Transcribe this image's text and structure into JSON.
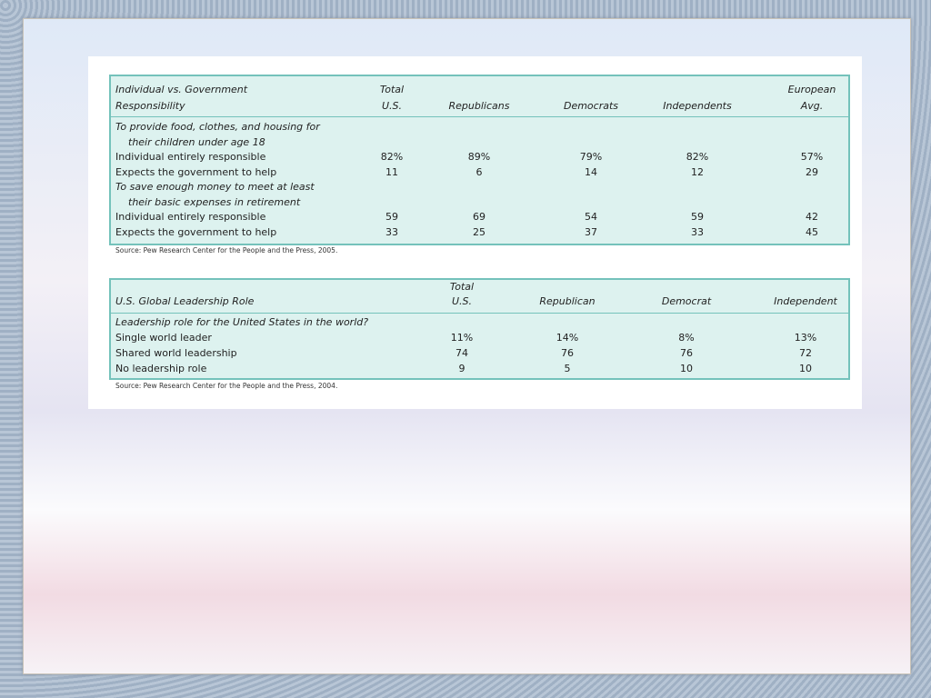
{
  "table1": {
    "header": [
      [
        "Individual vs. Government",
        "Responsibility"
      ],
      [
        "Total",
        "U.S."
      ],
      [
        "Republicans"
      ],
      [
        "Democrats"
      ],
      [
        "Independents"
      ],
      [
        "European",
        "Avg."
      ]
    ],
    "rows": [
      {
        "section": [
          "To provide food, clothes, and housing for",
          "their children under age 18"
        ]
      },
      {
        "label": "Individual entirely responsible",
        "values": [
          "82%",
          "89%",
          "79%",
          "82%",
          "57%"
        ]
      },
      {
        "label": "Expects the government to help",
        "values": [
          "11",
          "6",
          "14",
          "12",
          "29"
        ]
      },
      {
        "section": [
          "To save enough money to meet at least",
          "their basic expenses in retirement"
        ]
      },
      {
        "label": "Individual entirely responsible",
        "values": [
          "59",
          "69",
          "54",
          "59",
          "42"
        ]
      },
      {
        "label": "Expects the government to help",
        "values": [
          "33",
          "25",
          "37",
          "33",
          "45"
        ]
      }
    ],
    "source": "Source: Pew Research Center for the People and the Press, 2005."
  },
  "table2": {
    "header": [
      [
        "U.S. Global Leadership Role"
      ],
      [
        "Total",
        "U.S."
      ],
      [
        "Republican"
      ],
      [
        "Democrat"
      ],
      [
        "Independent"
      ]
    ],
    "rows": [
      {
        "section": [
          "Leadership role for the United States in the world?"
        ]
      },
      {
        "label": "Single world leader",
        "values": [
          "11%",
          "14%",
          "8%",
          "13%"
        ]
      },
      {
        "label": "Shared world leadership",
        "values": [
          "74",
          "76",
          "76",
          "72"
        ]
      },
      {
        "label": "No leadership role",
        "values": [
          "9",
          "5",
          "10",
          "10"
        ]
      }
    ],
    "source": "Source: Pew Research Center for the People and the Press, 2004."
  }
}
